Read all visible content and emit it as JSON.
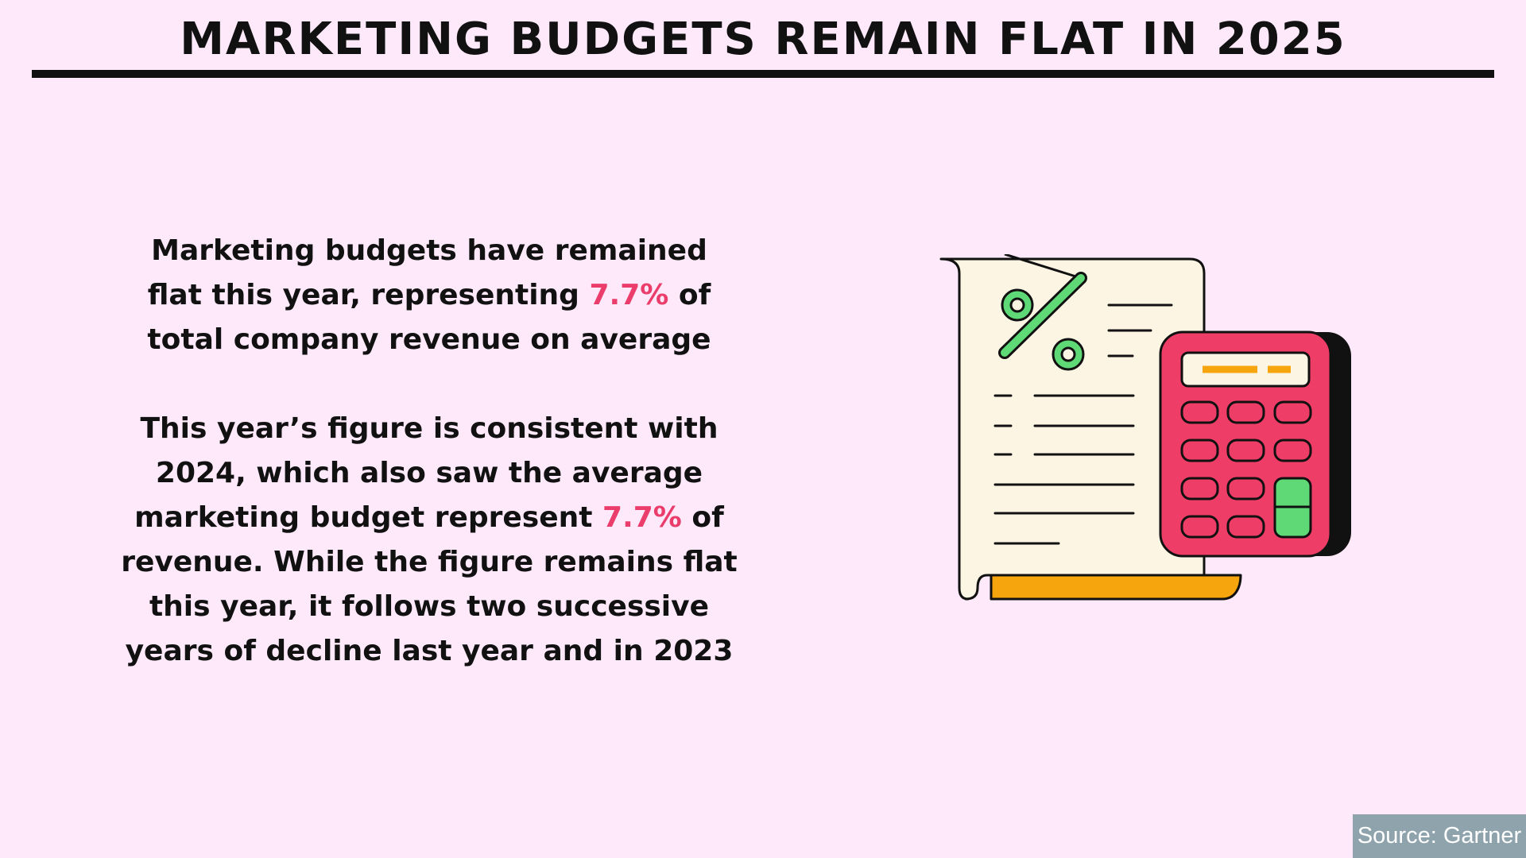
{
  "header": {
    "title": "MARKETING BUDGETS REMAIN FLAT IN 2025"
  },
  "paragraph1": {
    "before": "Marketing budgets have remained flat this year, representing ",
    "highlight": "7.7%",
    "after": " of total company revenue on average"
  },
  "paragraph2": {
    "before": "This year’s figure is consistent with 2024, which also saw the average marketing budget represent ",
    "highlight": "7.7%",
    "after": " of revenue. While the figure remains flat this year, it follows two successive years of decline last year and in 2023"
  },
  "source": {
    "label": "Source: Gartner"
  },
  "colors": {
    "background": "#fde9f9",
    "highlight": "#ea3d6c",
    "receipt": "#fdf5e4",
    "receipt_base": "#f7a50c",
    "calculator": "#ee3d67",
    "green": "#5fd876",
    "source_bg": "#8fa3ad"
  },
  "icons": {
    "illustration": "receipt-and-calculator-icon"
  }
}
